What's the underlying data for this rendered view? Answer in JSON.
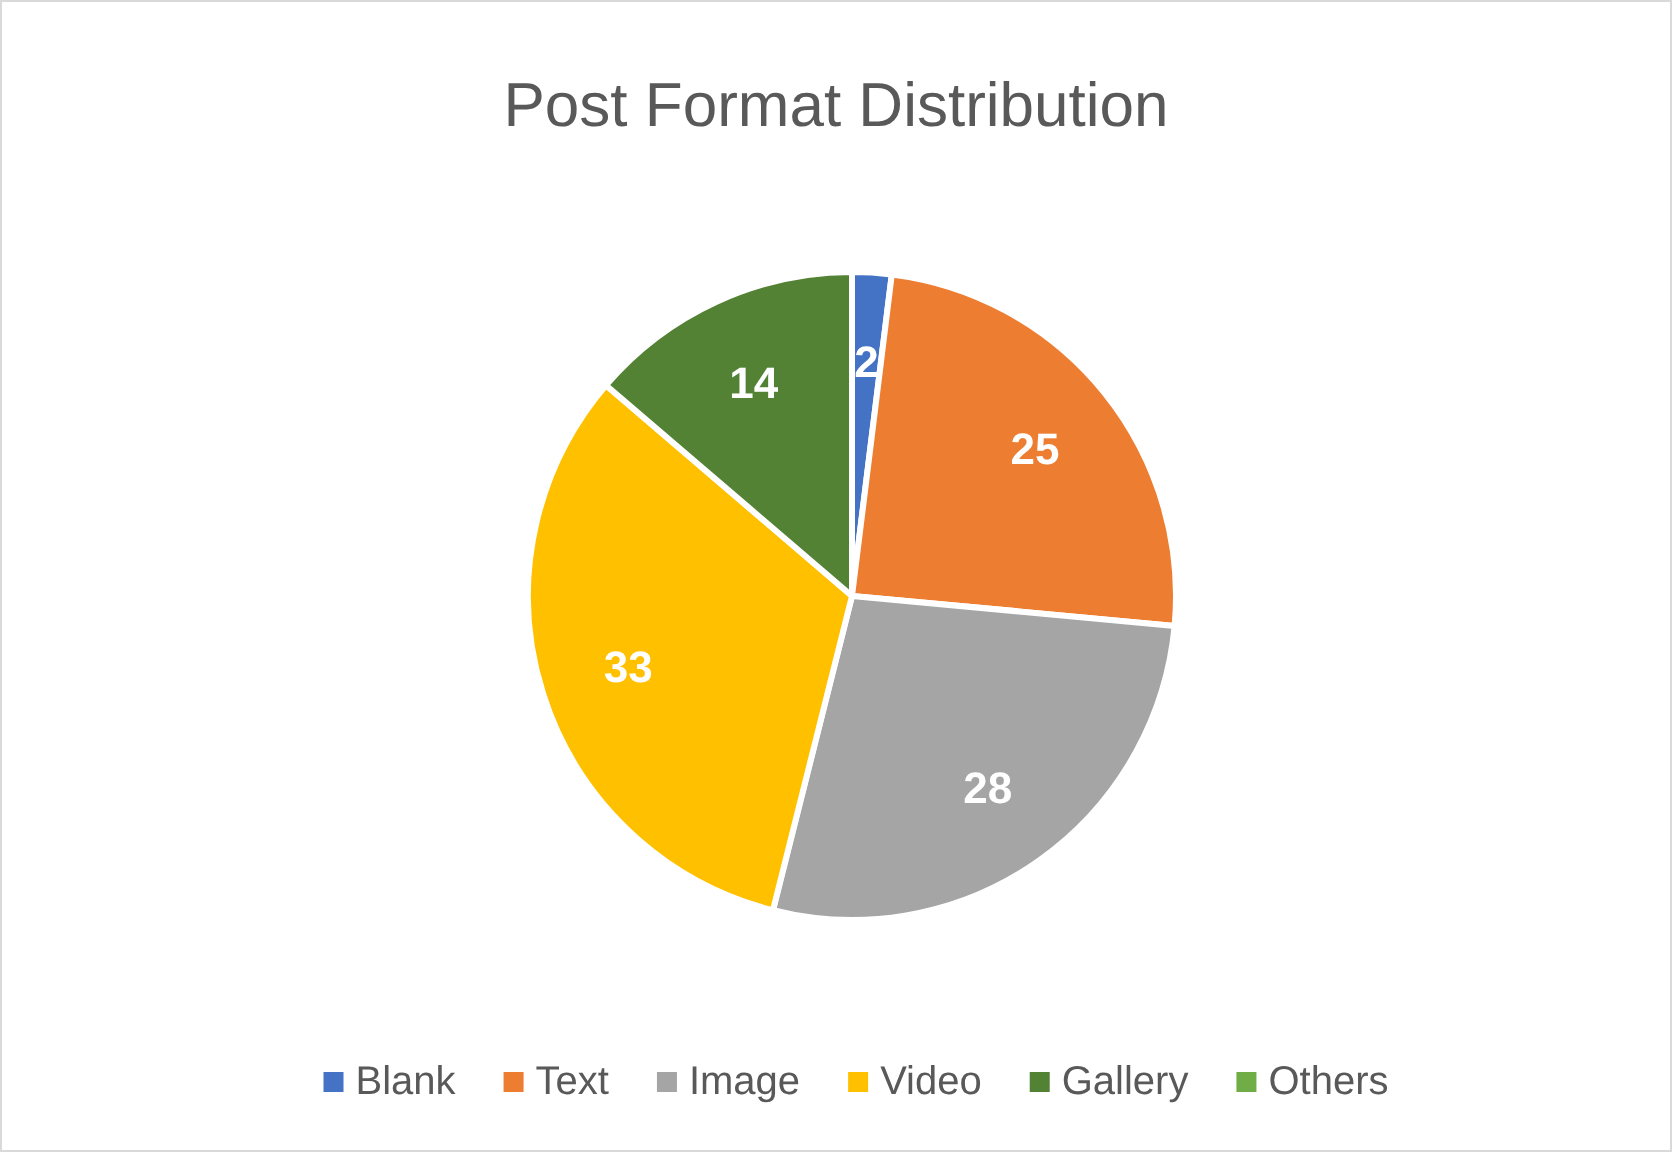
{
  "chart_data": {
    "type": "pie",
    "title": "Post Format Distribution",
    "categories": [
      "Blank",
      "Text",
      "Image",
      "Video",
      "Gallery",
      "Others"
    ],
    "values": [
      2,
      25,
      28,
      33,
      14,
      0
    ],
    "colors": [
      "#4472c4",
      "#ed7d31",
      "#a5a5a5",
      "#ffc000",
      "#548235",
      "#70ad47"
    ],
    "value_labels": [
      "2",
      "25",
      "28",
      "33",
      "14",
      null
    ],
    "legend": "bottom"
  }
}
